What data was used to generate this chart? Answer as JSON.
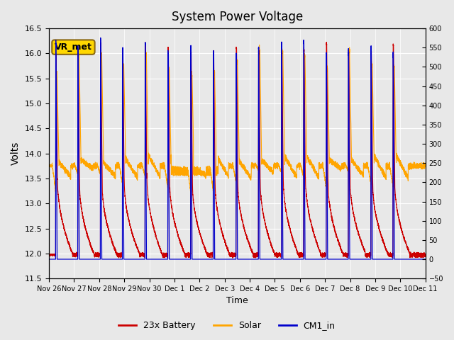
{
  "title": "System Power Voltage",
  "xlabel": "Time",
  "ylabel": "Volts",
  "ylim_left": [
    11.5,
    16.5
  ],
  "ylim_right": [
    -50,
    600
  ],
  "yticks_left": [
    11.5,
    12.0,
    12.5,
    13.0,
    13.5,
    14.0,
    14.5,
    15.0,
    15.5,
    16.0,
    16.5
  ],
  "yticks_right": [
    -50,
    0,
    50,
    100,
    150,
    200,
    250,
    300,
    350,
    400,
    450,
    500,
    550,
    600
  ],
  "xtick_labels": [
    "Nov 26",
    "Nov 27",
    "Nov 28",
    "Nov 29",
    "Nov 30",
    "Dec 1",
    "Dec 2",
    "Dec 3",
    "Dec 4",
    "Dec 5",
    "Dec 6",
    "Dec 7",
    "Dec 8",
    "Dec 9",
    "Dec 10",
    "Dec 11"
  ],
  "legend_labels": [
    "23x Battery",
    "Solar",
    "CM1_in"
  ],
  "legend_colors": [
    "#cc0000",
    "#ffa500",
    "#0000cc"
  ],
  "annotation_text": "VR_met",
  "annotation_box_color": "#ffd700",
  "annotation_edge_color": "#8B6914",
  "bg_color": "#e8e8e8",
  "plot_bg_color": "#e8e8e8",
  "grid_color": "#ffffff",
  "line_colors": {
    "battery": "#cc0000",
    "solar": "#ffa500",
    "cm1": "#0000cc"
  },
  "charge_times": [
    0.28,
    1.22,
    2.18,
    3.12,
    4.08,
    5.05,
    6.02,
    6.98,
    7.95,
    8.9,
    9.88,
    10.82,
    11.78,
    12.72,
    13.68,
    14.62
  ],
  "n_points": 5000,
  "total_days": 16.0
}
